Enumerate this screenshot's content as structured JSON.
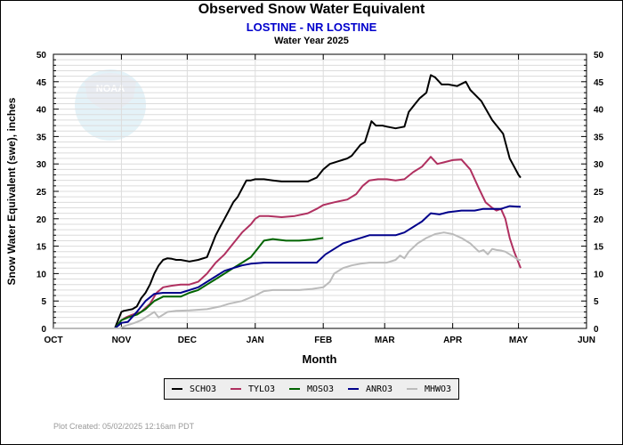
{
  "header": {
    "title": "Observed Snow Water Equivalent",
    "subtitle": "LOSTINE - NR LOSTINE",
    "year": "Water Year 2025"
  },
  "footer": "Plot Created: 05/02/2025 12:16am PDT",
  "watermark": "noaa-logo",
  "chart_data": {
    "type": "line",
    "title": "Observed Snow Water Equivalent",
    "subtitle": "LOSTINE - NR LOSTINE",
    "xlabel": "Month",
    "ylabel": "Snow Water Equivalent (swe),  inches",
    "ylim": [
      0,
      50
    ],
    "yticks": [
      0,
      5,
      10,
      15,
      20,
      25,
      30,
      35,
      40,
      45,
      50
    ],
    "x_unit": "days since Oct 1",
    "xlim": [
      0,
      243
    ],
    "xticks": [
      {
        "label": "OCT",
        "day": 0
      },
      {
        "label": "NOV",
        "day": 31
      },
      {
        "label": "DEC",
        "day": 61
      },
      {
        "label": "JAN",
        "day": 92
      },
      {
        "label": "FEB",
        "day": 123
      },
      {
        "label": "MAR",
        "day": 151
      },
      {
        "label": "APR",
        "day": 182
      },
      {
        "label": "MAY",
        "day": 212
      },
      {
        "label": "JUN",
        "day": 243
      }
    ],
    "grid": true,
    "legend_position": "bottom",
    "series": [
      {
        "name": "SCHO3",
        "color": "#000000",
        "x": [
          0,
          28,
          31,
          32,
          36,
          38,
          40,
          42,
          44,
          46,
          48,
          50,
          52,
          54,
          56,
          58,
          62,
          66,
          70,
          72,
          74,
          76,
          78,
          80,
          82,
          84,
          86,
          88,
          90,
          92,
          94,
          96,
          100,
          104,
          110,
          116,
          120,
          123,
          126,
          130,
          134,
          136,
          140,
          142,
          145,
          147,
          150,
          152,
          156,
          160,
          162,
          165,
          167,
          170,
          172,
          174,
          177,
          180,
          184,
          188,
          190,
          195,
          200,
          205,
          208,
          210,
          212,
          213
        ],
        "y": [
          0,
          0,
          3,
          3.2,
          3.5,
          4,
          5.5,
          6.5,
          8,
          10,
          11.5,
          12.5,
          12.8,
          12.7,
          12.5,
          12.5,
          12.2,
          12.5,
          13,
          15,
          17,
          18.5,
          20,
          21.5,
          23,
          24,
          25.5,
          27,
          27,
          27.2,
          27.2,
          27.2,
          27,
          26.8,
          26.8,
          26.8,
          27.5,
          29,
          30,
          30.5,
          31,
          31.5,
          33.5,
          34,
          37.8,
          37,
          37,
          36.8,
          36.5,
          36.8,
          39.5,
          41,
          42,
          43,
          46.2,
          45.8,
          44.5,
          44.5,
          44.2,
          45,
          43.5,
          41.5,
          38,
          35.5,
          31,
          29.5,
          28,
          27.5
        ]
      },
      {
        "name": "TYLO3",
        "color": "#b03060",
        "x": [
          0,
          28,
          31,
          33,
          36,
          40,
          44,
          47,
          50,
          54,
          58,
          62,
          66,
          70,
          74,
          78,
          82,
          86,
          90,
          92,
          94,
          98,
          104,
          110,
          116,
          120,
          123,
          128,
          134,
          138,
          141,
          144,
          148,
          152,
          156,
          160,
          164,
          168,
          172,
          175,
          178,
          182,
          186,
          190,
          194,
          197,
          200,
          202,
          204,
          206,
          208,
          210,
          212,
          213
        ],
        "y": [
          0,
          0,
          1.5,
          2,
          2.5,
          3,
          4.5,
          6.5,
          7.5,
          7.8,
          8,
          8,
          8.5,
          10,
          12,
          13.5,
          15.5,
          17.5,
          19,
          20,
          20.5,
          20.5,
          20.3,
          20.5,
          21,
          21.8,
          22.5,
          23,
          23.5,
          24.5,
          26,
          27,
          27.2,
          27.2,
          27,
          27.2,
          28.5,
          29.5,
          31.3,
          30,
          30.3,
          30.7,
          30.8,
          29,
          25.5,
          23,
          22,
          21.5,
          21.8,
          20,
          16.5,
          14,
          12,
          11
        ]
      },
      {
        "name": "MOSO3",
        "color": "#006400",
        "x": [
          0,
          28,
          31,
          34,
          38,
          42,
          46,
          50,
          54,
          58,
          62,
          66,
          70,
          74,
          78,
          82,
          86,
          90,
          93,
          96,
          100,
          106,
          112,
          118,
          123
        ],
        "y": [
          0,
          0,
          1.5,
          2,
          2.5,
          3.5,
          5,
          5.8,
          5.8,
          5.8,
          6.5,
          7,
          8,
          9,
          10,
          11,
          12,
          13,
          14.5,
          16,
          16.3,
          16,
          16,
          16.2,
          16.5
        ]
      },
      {
        "name": "ANRO3",
        "color": "#00008b",
        "x": [
          0,
          28,
          31,
          34,
          38,
          42,
          46,
          50,
          54,
          58,
          62,
          66,
          70,
          74,
          78,
          82,
          86,
          90,
          96,
          104,
          112,
          120,
          124,
          128,
          132,
          136,
          140,
          144,
          150,
          156,
          160,
          164,
          168,
          172,
          176,
          180,
          186,
          192,
          196,
          200,
          204,
          208,
          212,
          213
        ],
        "y": [
          0,
          0,
          1,
          1.2,
          3,
          5,
          6.3,
          6.5,
          6.5,
          6.5,
          7,
          7.5,
          8.5,
          9.5,
          10.5,
          11,
          11.5,
          11.8,
          12,
          12,
          12,
          12,
          13.5,
          14.5,
          15.5,
          16,
          16.5,
          17,
          17,
          17,
          17.5,
          18.5,
          19.5,
          21,
          20.8,
          21.2,
          21.5,
          21.5,
          21.8,
          21.8,
          21.8,
          22.3,
          22.2,
          22.2
        ]
      },
      {
        "name": "MHWO3",
        "color": "#bbbbbb",
        "x": [
          0,
          30,
          33,
          37,
          40,
          44,
          46,
          48,
          52,
          56,
          62,
          70,
          76,
          80,
          86,
          92,
          96,
          100,
          106,
          112,
          118,
          123,
          126,
          128,
          132,
          136,
          140,
          144,
          148,
          152,
          156,
          158,
          160,
          162,
          166,
          170,
          174,
          178,
          182,
          186,
          190,
          194,
          196,
          198,
          200,
          202,
          204,
          206,
          208,
          210,
          212,
          213
        ],
        "y": [
          0,
          0,
          0.5,
          1,
          1.5,
          2.5,
          3,
          2,
          3,
          3.2,
          3.3,
          3.5,
          4,
          4.5,
          5,
          6,
          6.8,
          7,
          7,
          7,
          7.2,
          7.5,
          8.5,
          10,
          11,
          11.5,
          11.8,
          12,
          12,
          12,
          12.5,
          13.3,
          12.8,
          14,
          15.5,
          16.5,
          17.2,
          17.5,
          17.2,
          16.5,
          15.5,
          14,
          14.3,
          13.5,
          14.5,
          14.3,
          14.2,
          14,
          13.5,
          13,
          12.5,
          12.5
        ]
      }
    ]
  }
}
